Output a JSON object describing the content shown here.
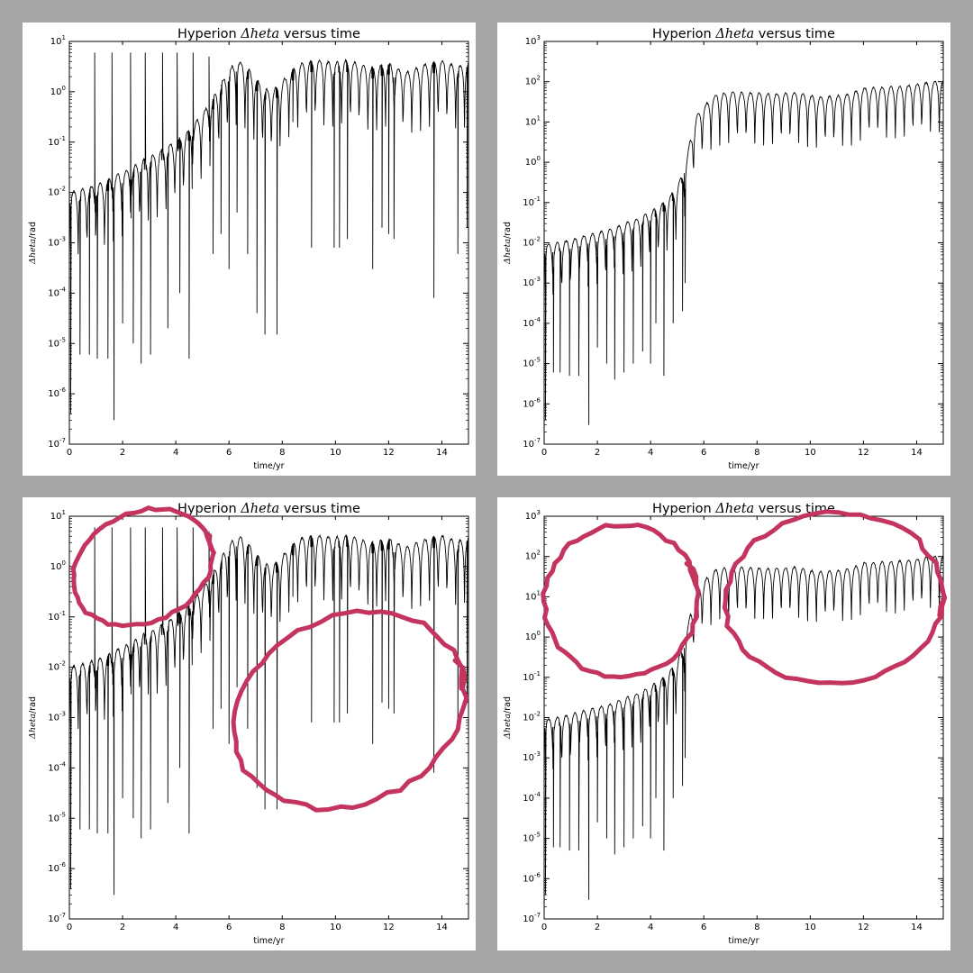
{
  "chart_data": [
    {
      "panel": "top-left",
      "type": "line",
      "title": {
        "prefix": "Hyperion ",
        "math": "Δheta",
        "suffix": " versus time"
      },
      "xlabel": "time/yr",
      "ylabel": {
        "math": "Δheta",
        "suffix": "/rad"
      },
      "yscale": "log",
      "xlim": [
        0,
        15
      ],
      "ylim": [
        1e-07,
        10
      ],
      "xticks": [
        0,
        2,
        4,
        6,
        8,
        10,
        12,
        14
      ],
      "yticks": [
        -7,
        -6,
        -5,
        -4,
        -3,
        -2,
        -1,
        0,
        1
      ],
      "grid": false,
      "series": [
        {
          "color": "#000000",
          "x": [
            0,
            0.3,
            0.6,
            0.95,
            1.3,
            1.6,
            1.95,
            2.3,
            2.6,
            2.95,
            3.3,
            3.6,
            3.95,
            4.3,
            4.6,
            4.95,
            5.3,
            5.6,
            5.95,
            6.3,
            6.6,
            6.95,
            7.3,
            7.6,
            7.95,
            8.3,
            8.6,
            8.95,
            9.3,
            9.6,
            9.95,
            10.3,
            10.6,
            10.95,
            11.3,
            11.6,
            11.95,
            12.3,
            12.6,
            12.95,
            13.3,
            13.6,
            13.95,
            14.3,
            14.6,
            15
          ],
          "y": [
            0.01,
            0.011,
            0.012,
            0.014,
            0.016,
            0.02,
            0.025,
            0.03,
            0.04,
            0.05,
            0.06,
            0.08,
            0.1,
            0.14,
            0.2,
            0.35,
            0.6,
            1.2,
            2.5,
            4.2,
            3.5,
            2.0,
            1.2,
            1.0,
            1.5,
            2.5,
            3.5,
            4.0,
            4.2,
            4.0,
            3.8,
            4.2,
            4.0,
            3.5,
            3.0,
            3.2,
            3.8,
            3.0,
            2.4,
            2.8,
            3.4,
            3.8,
            4.2,
            3.6,
            3.2,
            3.8
          ],
          "dips": [
            {
              "x": 0.05,
              "y": 4e-07
            },
            {
              "x": 0.4,
              "y": 6e-06
            },
            {
              "x": 0.75,
              "y": 6e-06
            },
            {
              "x": 0.95,
              "y": 6
            },
            {
              "x": 1.05,
              "y": 5e-06
            },
            {
              "x": 1.45,
              "y": 5e-06
            },
            {
              "x": 1.6,
              "y": 6
            },
            {
              "x": 1.68,
              "y": 3e-07
            },
            {
              "x": 2.0,
              "y": 2.5e-05
            },
            {
              "x": 2.3,
              "y": 6
            },
            {
              "x": 2.4,
              "y": 1e-05
            },
            {
              "x": 2.7,
              "y": 4e-06
            },
            {
              "x": 2.85,
              "y": 6
            },
            {
              "x": 3.05,
              "y": 6e-06
            },
            {
              "x": 3.5,
              "y": 6
            },
            {
              "x": 3.7,
              "y": 2e-05
            },
            {
              "x": 4.05,
              "y": 6
            },
            {
              "x": 4.15,
              "y": 0.0001
            },
            {
              "x": 4.5,
              "y": 5e-06
            },
            {
              "x": 4.65,
              "y": 6
            },
            {
              "x": 5.25,
              "y": 5
            },
            {
              "x": 5.4,
              "y": 0.0006
            },
            {
              "x": 5.7,
              "y": 0.0015
            },
            {
              "x": 6.0,
              "y": 0.0003
            },
            {
              "x": 6.3,
              "y": 0.004
            },
            {
              "x": 6.7,
              "y": 0.0006
            },
            {
              "x": 7.05,
              "y": 4e-05
            },
            {
              "x": 7.35,
              "y": 1.5e-05
            },
            {
              "x": 7.8,
              "y": 1.5e-05
            },
            {
              "x": 8.4,
              "y": 0.25
            },
            {
              "x": 9.1,
              "y": 0.0008
            },
            {
              "x": 9.95,
              "y": 0.0008
            },
            {
              "x": 10.15,
              "y": 0.0008
            },
            {
              "x": 10.45,
              "y": 0.0012
            },
            {
              "x": 11.4,
              "y": 0.0003
            },
            {
              "x": 11.75,
              "y": 0.002
            },
            {
              "x": 12.0,
              "y": 0.0015
            },
            {
              "x": 12.2,
              "y": 0.0012
            },
            {
              "x": 13.7,
              "y": 8e-05
            },
            {
              "x": 14.6,
              "y": 0.0006
            },
            {
              "x": 14.95,
              "y": 0.002
            }
          ]
        }
      ]
    },
    {
      "panel": "top-right",
      "type": "line",
      "title": {
        "prefix": "Hyperion ",
        "math": "Δheta",
        "suffix": " versus time"
      },
      "xlabel": "time/yr",
      "ylabel": {
        "math": "Δheta",
        "suffix": "/rad"
      },
      "yscale": "log",
      "xlim": [
        0,
        15
      ],
      "ylim": [
        1e-07,
        1000
      ],
      "xticks": [
        0,
        2,
        4,
        6,
        8,
        10,
        12,
        14
      ],
      "yticks": [
        -7,
        -6,
        -5,
        -4,
        -3,
        -2,
        -1,
        0,
        1,
        2,
        3
      ],
      "grid": false,
      "series": [
        {
          "color": "#000000",
          "x": [
            0,
            0.5,
            1.0,
            1.5,
            2.0,
            2.5,
            3.0,
            3.5,
            4.0,
            4.5,
            4.9,
            5.2,
            5.35,
            5.5,
            5.75,
            6.0,
            6.5,
            7.0,
            8.0,
            8.5,
            9.0,
            9.5,
            10.0,
            10.5,
            11.0,
            11.5,
            12.0,
            12.5,
            13.0,
            13.5,
            14.0,
            14.5,
            15
          ],
          "y": [
            0.009,
            0.01,
            0.012,
            0.015,
            0.018,
            0.022,
            0.03,
            0.04,
            0.06,
            0.1,
            0.2,
            0.5,
            1.2,
            4,
            15,
            25,
            50,
            55,
            52,
            50,
            52,
            55,
            45,
            42,
            45,
            50,
            70,
            72,
            75,
            78,
            85,
            100,
            105
          ],
          "dips": [
            {
              "x": 0.05,
              "y": 4e-07
            },
            {
              "x": 0.35,
              "y": 6e-06
            },
            {
              "x": 0.6,
              "y": 6e-06
            },
            {
              "x": 0.95,
              "y": 5e-06
            },
            {
              "x": 1.3,
              "y": 5e-06
            },
            {
              "x": 1.68,
              "y": 3e-07
            },
            {
              "x": 2.0,
              "y": 2.5e-05
            },
            {
              "x": 2.35,
              "y": 1e-05
            },
            {
              "x": 2.65,
              "y": 4e-06
            },
            {
              "x": 3.0,
              "y": 6e-06
            },
            {
              "x": 3.35,
              "y": 1e-05
            },
            {
              "x": 3.7,
              "y": 2e-05
            },
            {
              "x": 4.0,
              "y": 1e-05
            },
            {
              "x": 4.2,
              "y": 0.0001
            },
            {
              "x": 4.5,
              "y": 5e-06
            },
            {
              "x": 4.85,
              "y": 0.0001
            },
            {
              "x": 5.2,
              "y": 0.0002
            },
            {
              "x": 5.3,
              "y": 0.001
            }
          ]
        }
      ]
    },
    {
      "panel": "bottom-left",
      "type": "line",
      "title": {
        "prefix": "Hyperion ",
        "math": "Δheta",
        "suffix": " versus time"
      },
      "xlabel": "time/yr",
      "ylabel": {
        "math": "Δheta",
        "suffix": "/rad"
      },
      "yscale": "log",
      "xlim": [
        0,
        15
      ],
      "ylim": [
        1e-07,
        10
      ],
      "xticks": [
        0,
        2,
        4,
        6,
        8,
        10,
        12,
        14
      ],
      "yticks": [
        -7,
        -6,
        -5,
        -4,
        -3,
        -2,
        -1,
        0,
        1
      ],
      "grid": false,
      "annotations": [
        {
          "type": "freehand-ellipse",
          "color": "#c3355f",
          "x": [
            0,
            5.5
          ],
          "y": [
            0.08,
            12
          ]
        },
        {
          "type": "freehand-ellipse",
          "color": "#c3355f",
          "x": [
            6,
            15
          ],
          "y": [
            2e-05,
            0.1
          ]
        }
      ],
      "series": [
        {
          "color": "#000000",
          "x": [
            0,
            0.3,
            0.6,
            0.95,
            1.3,
            1.6,
            1.95,
            2.3,
            2.6,
            2.95,
            3.3,
            3.6,
            3.95,
            4.3,
            4.6,
            4.95,
            5.3,
            5.6,
            5.95,
            6.3,
            6.6,
            6.95,
            7.3,
            7.6,
            7.95,
            8.3,
            8.6,
            8.95,
            9.3,
            9.6,
            9.95,
            10.3,
            10.6,
            10.95,
            11.3,
            11.6,
            11.95,
            12.3,
            12.6,
            12.95,
            13.3,
            13.6,
            13.95,
            14.3,
            14.6,
            15
          ],
          "y": [
            0.01,
            0.011,
            0.012,
            0.014,
            0.016,
            0.02,
            0.025,
            0.03,
            0.04,
            0.05,
            0.06,
            0.08,
            0.1,
            0.14,
            0.2,
            0.35,
            0.6,
            1.2,
            2.5,
            4.2,
            3.5,
            2.0,
            1.2,
            1.0,
            1.5,
            2.5,
            3.5,
            4.0,
            4.2,
            4.0,
            3.8,
            4.2,
            4.0,
            3.5,
            3.0,
            3.2,
            3.8,
            3.0,
            2.4,
            2.8,
            3.4,
            3.8,
            4.2,
            3.6,
            3.2,
            3.8
          ],
          "dips": [
            {
              "x": 0.05,
              "y": 4e-07
            },
            {
              "x": 0.4,
              "y": 6e-06
            },
            {
              "x": 0.75,
              "y": 6e-06
            },
            {
              "x": 0.95,
              "y": 6
            },
            {
              "x": 1.05,
              "y": 5e-06
            },
            {
              "x": 1.45,
              "y": 5e-06
            },
            {
              "x": 1.6,
              "y": 6
            },
            {
              "x": 1.68,
              "y": 3e-07
            },
            {
              "x": 2.0,
              "y": 2.5e-05
            },
            {
              "x": 2.3,
              "y": 6
            },
            {
              "x": 2.4,
              "y": 1e-05
            },
            {
              "x": 2.7,
              "y": 4e-06
            },
            {
              "x": 2.85,
              "y": 6
            },
            {
              "x": 3.05,
              "y": 6e-06
            },
            {
              "x": 3.5,
              "y": 6
            },
            {
              "x": 3.7,
              "y": 2e-05
            },
            {
              "x": 4.05,
              "y": 6
            },
            {
              "x": 4.15,
              "y": 0.0001
            },
            {
              "x": 4.5,
              "y": 5e-06
            },
            {
              "x": 4.65,
              "y": 6
            },
            {
              "x": 5.25,
              "y": 5
            },
            {
              "x": 5.4,
              "y": 0.0006
            },
            {
              "x": 5.7,
              "y": 0.0015
            },
            {
              "x": 6.0,
              "y": 0.0003
            },
            {
              "x": 6.3,
              "y": 0.004
            },
            {
              "x": 6.7,
              "y": 0.0006
            },
            {
              "x": 7.05,
              "y": 4e-05
            },
            {
              "x": 7.35,
              "y": 1.5e-05
            },
            {
              "x": 7.8,
              "y": 1.5e-05
            },
            {
              "x": 8.4,
              "y": 0.25
            },
            {
              "x": 9.1,
              "y": 0.0008
            },
            {
              "x": 9.95,
              "y": 0.0008
            },
            {
              "x": 10.15,
              "y": 0.0008
            },
            {
              "x": 10.45,
              "y": 0.0012
            },
            {
              "x": 11.4,
              "y": 0.0003
            },
            {
              "x": 11.75,
              "y": 0.002
            },
            {
              "x": 12.0,
              "y": 0.0015
            },
            {
              "x": 12.2,
              "y": 0.0012
            },
            {
              "x": 13.7,
              "y": 8e-05
            },
            {
              "x": 14.6,
              "y": 0.0006
            },
            {
              "x": 14.95,
              "y": 0.002
            }
          ]
        }
      ]
    },
    {
      "panel": "bottom-right",
      "type": "line",
      "title": {
        "prefix": "Hyperion ",
        "math": "Δheta",
        "suffix": " versus time"
      },
      "xlabel": "time/yr",
      "ylabel": {
        "math": "Δheta",
        "suffix": "/rad"
      },
      "yscale": "log",
      "xlim": [
        0,
        15
      ],
      "ylim": [
        1e-07,
        1000
      ],
      "xticks": [
        0,
        2,
        4,
        6,
        8,
        10,
        12,
        14
      ],
      "yticks": [
        -7,
        -6,
        -5,
        -4,
        -3,
        -2,
        -1,
        0,
        1,
        2,
        3
      ],
      "grid": false,
      "annotations": [
        {
          "type": "freehand-ellipse",
          "color": "#c3355f",
          "x": [
            0,
            5.8
          ],
          "y": [
            0.1,
            600
          ]
        },
        {
          "type": "freehand-ellipse",
          "color": "#c3355f",
          "x": [
            6.8,
            15
          ],
          "y": [
            0.07,
            1200
          ]
        }
      ],
      "series": [
        {
          "color": "#000000",
          "x": [
            0,
            0.5,
            1.0,
            1.5,
            2.0,
            2.5,
            3.0,
            3.5,
            4.0,
            4.5,
            4.9,
            5.2,
            5.35,
            5.5,
            5.75,
            6.0,
            6.5,
            7.0,
            8.0,
            8.5,
            9.0,
            9.5,
            10.0,
            10.5,
            11.0,
            11.5,
            12.0,
            12.5,
            13.0,
            13.5,
            14.0,
            14.5,
            15
          ],
          "y": [
            0.009,
            0.01,
            0.012,
            0.015,
            0.018,
            0.022,
            0.03,
            0.04,
            0.06,
            0.1,
            0.2,
            0.5,
            1.2,
            4,
            15,
            25,
            50,
            55,
            52,
            50,
            52,
            55,
            45,
            42,
            45,
            50,
            70,
            72,
            75,
            78,
            85,
            100,
            105
          ],
          "dips": [
            {
              "x": 0.05,
              "y": 4e-07
            },
            {
              "x": 0.35,
              "y": 6e-06
            },
            {
              "x": 0.6,
              "y": 6e-06
            },
            {
              "x": 0.95,
              "y": 5e-06
            },
            {
              "x": 1.3,
              "y": 5e-06
            },
            {
              "x": 1.68,
              "y": 3e-07
            },
            {
              "x": 2.0,
              "y": 2.5e-05
            },
            {
              "x": 2.35,
              "y": 1e-05
            },
            {
              "x": 2.65,
              "y": 4e-06
            },
            {
              "x": 3.0,
              "y": 6e-06
            },
            {
              "x": 3.35,
              "y": 1e-05
            },
            {
              "x": 3.7,
              "y": 2e-05
            },
            {
              "x": 4.0,
              "y": 1e-05
            },
            {
              "x": 4.2,
              "y": 0.0001
            },
            {
              "x": 4.5,
              "y": 5e-06
            },
            {
              "x": 4.85,
              "y": 0.0001
            },
            {
              "x": 5.2,
              "y": 0.0002
            },
            {
              "x": 5.3,
              "y": 0.001
            }
          ]
        }
      ]
    }
  ]
}
